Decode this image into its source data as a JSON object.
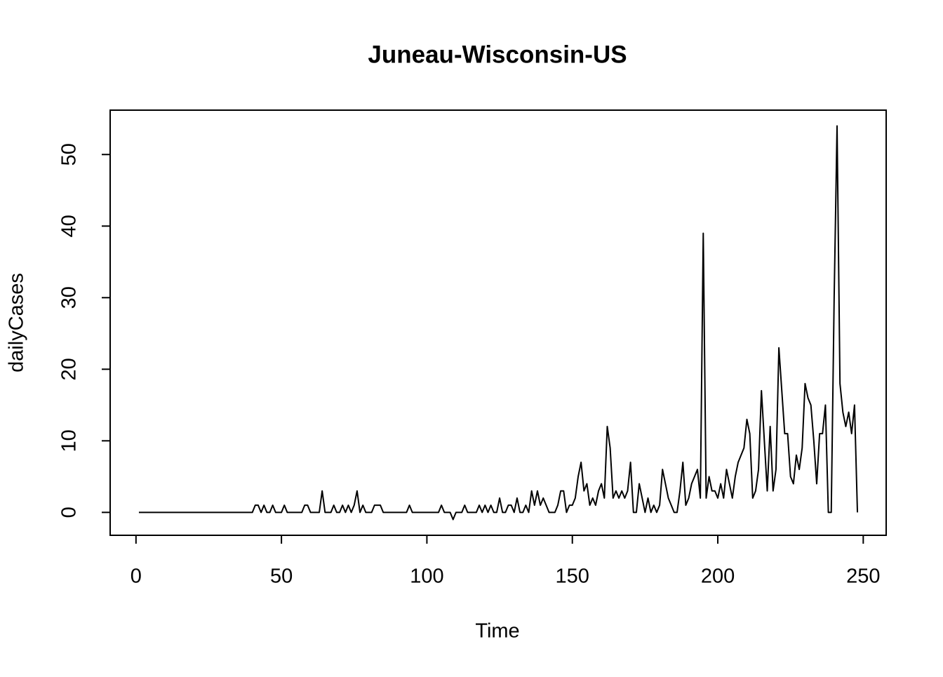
{
  "chart_data": {
    "type": "line",
    "title": "Juneau-Wisconsin-US",
    "x_label": "Time",
    "y_label": "dailyCases",
    "x": [
      1,
      2,
      3,
      4,
      5,
      6,
      7,
      8,
      9,
      10,
      11,
      12,
      13,
      14,
      15,
      16,
      17,
      18,
      19,
      20,
      21,
      22,
      23,
      24,
      25,
      26,
      27,
      28,
      29,
      30,
      31,
      32,
      33,
      34,
      35,
      36,
      37,
      38,
      39,
      40,
      41,
      42,
      43,
      44,
      45,
      46,
      47,
      48,
      49,
      50,
      51,
      52,
      53,
      54,
      55,
      56,
      57,
      58,
      59,
      60,
      61,
      62,
      63,
      64,
      65,
      66,
      67,
      68,
      69,
      70,
      71,
      72,
      73,
      74,
      75,
      76,
      77,
      78,
      79,
      80,
      81,
      82,
      83,
      84,
      85,
      86,
      87,
      88,
      89,
      90,
      91,
      92,
      93,
      94,
      95,
      96,
      97,
      98,
      99,
      100,
      101,
      102,
      103,
      104,
      105,
      106,
      107,
      108,
      109,
      110,
      111,
      112,
      113,
      114,
      115,
      116,
      117,
      118,
      119,
      120,
      121,
      122,
      123,
      124,
      125,
      126,
      127,
      128,
      129,
      130,
      131,
      132,
      133,
      134,
      135,
      136,
      137,
      138,
      139,
      140,
      141,
      142,
      143,
      144,
      145,
      146,
      147,
      148,
      149,
      150,
      151,
      152,
      153,
      154,
      155,
      156,
      157,
      158,
      159,
      160,
      161,
      162,
      163,
      164,
      165,
      166,
      167,
      168,
      169,
      170,
      171,
      172,
      173,
      174,
      175,
      176,
      177,
      178,
      179,
      180,
      181,
      182,
      183,
      184,
      185,
      186,
      187,
      188,
      189,
      190,
      191,
      192,
      193,
      194,
      195,
      196,
      197,
      198,
      199,
      200,
      201,
      202,
      203,
      204,
      205,
      206,
      207,
      208,
      209,
      210,
      211,
      212,
      213,
      214,
      215,
      216,
      217,
      218,
      219,
      220,
      221,
      222,
      223,
      224,
      225,
      226,
      227,
      228,
      229,
      230,
      231,
      232,
      233,
      234,
      235,
      236,
      237,
      238,
      239,
      240,
      241,
      242,
      243,
      244,
      245,
      246,
      247,
      248
    ],
    "values": [
      0,
      0,
      0,
      0,
      0,
      0,
      0,
      0,
      0,
      0,
      0,
      0,
      0,
      0,
      0,
      0,
      0,
      0,
      0,
      0,
      0,
      0,
      0,
      0,
      0,
      0,
      0,
      0,
      0,
      0,
      0,
      0,
      0,
      0,
      0,
      0,
      0,
      0,
      0,
      0,
      1,
      1,
      0,
      1,
      0,
      0,
      1,
      0,
      0,
      0,
      1,
      0,
      0,
      0,
      0,
      0,
      0,
      1,
      1,
      0,
      0,
      0,
      0,
      3,
      0,
      0,
      0,
      1,
      0,
      0,
      1,
      0,
      1,
      0,
      1,
      3,
      0,
      1,
      0,
      0,
      0,
      1,
      1,
      1,
      0,
      0,
      0,
      0,
      0,
      0,
      0,
      0,
      0,
      1,
      0,
      0,
      0,
      0,
      0,
      0,
      0,
      0,
      0,
      0,
      1,
      0,
      0,
      0,
      -1,
      0,
      0,
      0,
      1,
      0,
      0,
      0,
      0,
      1,
      0,
      1,
      0,
      1,
      0,
      0,
      2,
      0,
      0,
      1,
      1,
      0,
      2,
      0,
      0,
      1,
      0,
      3,
      1,
      3,
      1,
      2,
      1,
      0,
      0,
      0,
      1,
      3,
      3,
      0,
      1,
      1,
      2,
      5,
      7,
      3,
      4,
      1,
      2,
      1,
      3,
      4,
      2,
      12,
      9,
      2,
      3,
      2,
      3,
      2,
      3,
      7,
      0,
      0,
      4,
      2,
      0,
      2,
      0,
      1,
      0,
      1,
      6,
      4,
      2,
      1,
      0,
      0,
      3,
      7,
      1,
      2,
      4,
      5,
      6,
      2,
      39,
      2,
      5,
      3,
      3,
      2,
      4,
      2,
      6,
      4,
      2,
      5,
      7,
      8,
      9,
      13,
      11,
      2,
      3,
      6,
      17,
      10,
      3,
      12,
      3,
      6,
      23,
      17,
      11,
      11,
      5,
      4,
      8,
      6,
      9,
      18,
      16,
      15,
      10,
      4,
      11,
      11,
      15,
      0,
      0,
      30,
      54,
      18,
      14,
      12,
      14,
      11,
      15,
      0
    ],
    "color": "#000000",
    "xlim": [
      -8.88,
      257.88
    ],
    "xticks": [
      0,
      50,
      100,
      150,
      200,
      250
    ],
    "ylim": [
      -3.2,
      56.2
    ],
    "yticks": [
      0,
      10,
      20,
      30,
      40,
      50
    ]
  }
}
